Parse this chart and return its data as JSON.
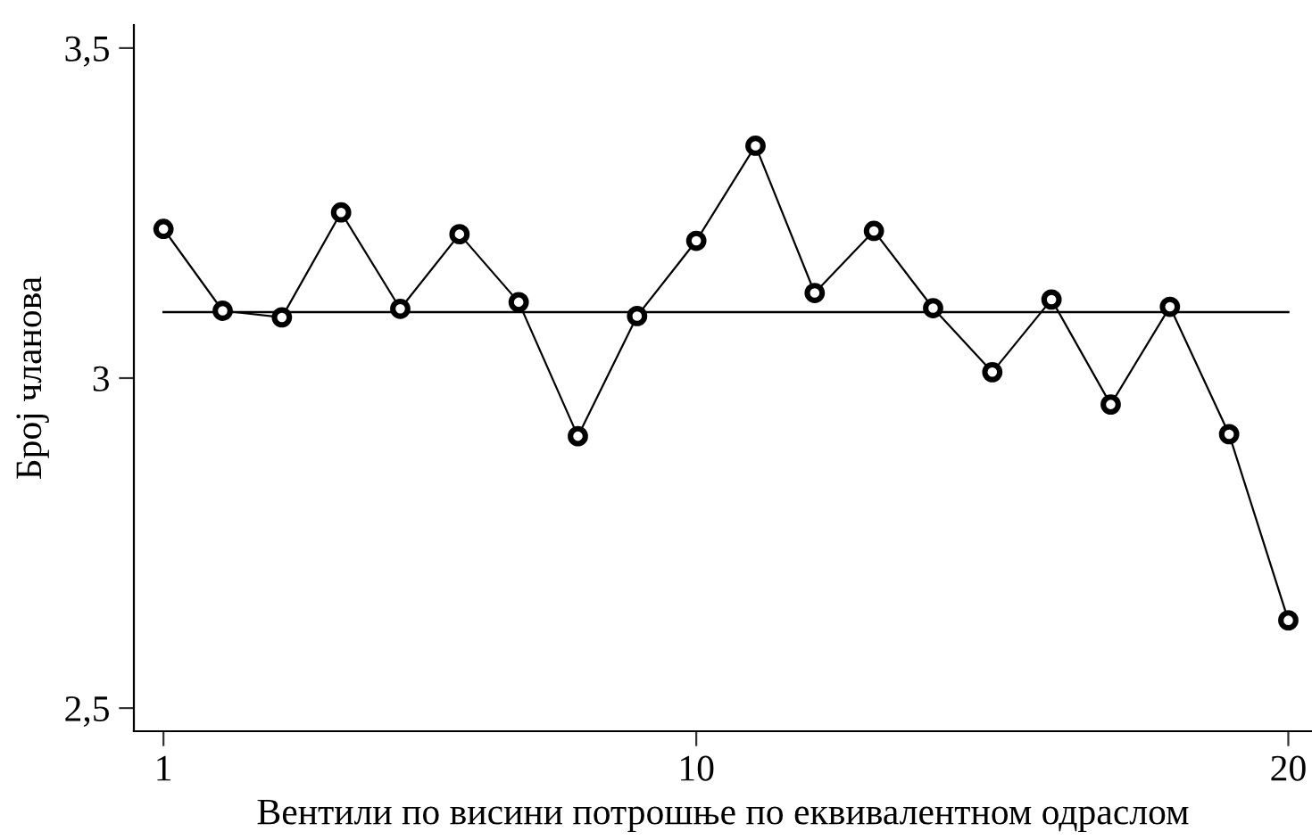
{
  "chart_data": {
    "type": "line",
    "xlabel": "Вентили по висини потрошње по еквивалентном одраслом",
    "ylabel": "Број чланова",
    "x": [
      1,
      2,
      3,
      4,
      5,
      6,
      7,
      8,
      9,
      10,
      11,
      12,
      13,
      14,
      15,
      16,
      17,
      18,
      19,
      20
    ],
    "series": [
      {
        "color": "#000000",
        "values": [
          3.226,
          3.102,
          3.092,
          3.251,
          3.105,
          3.218,
          3.115,
          2.912,
          3.094,
          3.208,
          3.352,
          3.129,
          3.223,
          3.106,
          3.009,
          3.119,
          2.96,
          3.108,
          2.915,
          2.633
        ]
      }
    ],
    "ref_lines": [
      {
        "axis": "y",
        "value": 3.1,
        "color": "#000000"
      }
    ],
    "xlim": [
      0.5,
      20.4
    ],
    "xticks": [
      1,
      10,
      20
    ],
    "ylim": [
      2.465,
      3.535
    ],
    "yticks": [
      {
        "value": 2.5,
        "label": "2,5"
      },
      3,
      {
        "value": 3.5,
        "label": "3,5"
      }
    ],
    "marker": "circle",
    "line_style": "solid",
    "grid": false,
    "legend": false
  }
}
